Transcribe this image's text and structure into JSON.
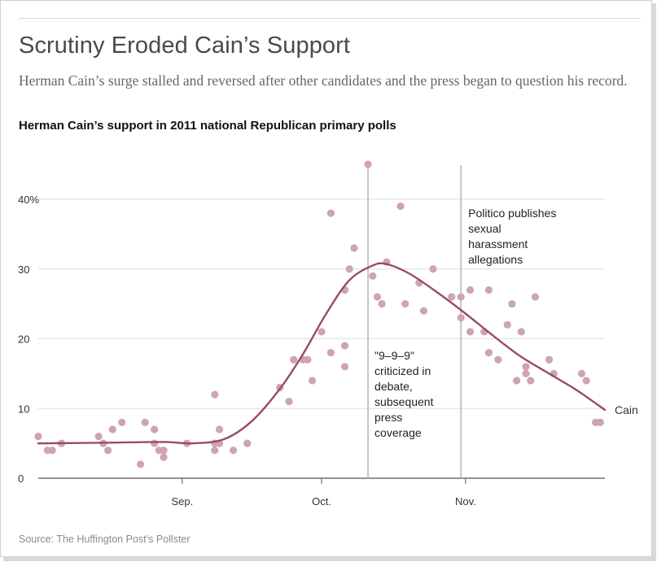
{
  "header": {
    "title": "Scrutiny Eroded Cain’s Support",
    "subtitle": "Herman Cain’s surge stalled and reversed after other candidates and the press began to question his record.",
    "chart_label": "Herman Cain’s support in 2011 national Republican primary polls"
  },
  "footer": {
    "source": "Source: The Huffington Post’s Pollster"
  },
  "colors": {
    "dot": "#cfa3b3",
    "line": "#9b4a66",
    "grid": "#dddddd",
    "event_line": "#b5b5b5",
    "text": "#333333"
  },
  "chart_data": {
    "type": "scatter",
    "title": "Herman Cain’s support in 2011 national Republican primary polls",
    "xlabel": "",
    "ylabel": "",
    "xlim_days_from_aug1": [
      0,
      122
    ],
    "ylim": [
      0,
      45
    ],
    "y_ticks": [
      {
        "value": 0,
        "label": "0"
      },
      {
        "value": 10,
        "label": "10"
      },
      {
        "value": 20,
        "label": "20"
      },
      {
        "value": 30,
        "label": "30"
      },
      {
        "value": 40,
        "label": "40%"
      }
    ],
    "x_ticks": [
      {
        "day": 31,
        "label": "Sep."
      },
      {
        "day": 61,
        "label": "Oct."
      },
      {
        "day": 92,
        "label": "Nov."
      }
    ],
    "grid": true,
    "points_day_value": [
      [
        0,
        6
      ],
      [
        2,
        4
      ],
      [
        3,
        4
      ],
      [
        5,
        5
      ],
      [
        13,
        6
      ],
      [
        14,
        5
      ],
      [
        15,
        4
      ],
      [
        16,
        7
      ],
      [
        18,
        8
      ],
      [
        22,
        2
      ],
      [
        23,
        8
      ],
      [
        25,
        7
      ],
      [
        25,
        5
      ],
      [
        26,
        4
      ],
      [
        27,
        4
      ],
      [
        27,
        3
      ],
      [
        32,
        5
      ],
      [
        38,
        12
      ],
      [
        38,
        5
      ],
      [
        38,
        4
      ],
      [
        39,
        7
      ],
      [
        39,
        5
      ],
      [
        42,
        4
      ],
      [
        45,
        5
      ],
      [
        52,
        13
      ],
      [
        54,
        11
      ],
      [
        55,
        17
      ],
      [
        57,
        17
      ],
      [
        58,
        17
      ],
      [
        59,
        14
      ],
      [
        61,
        21
      ],
      [
        63,
        38
      ],
      [
        63,
        18
      ],
      [
        66,
        27
      ],
      [
        66,
        19
      ],
      [
        66,
        16
      ],
      [
        67,
        30
      ],
      [
        68,
        33
      ],
      [
        71,
        45
      ],
      [
        72,
        29
      ],
      [
        73,
        26
      ],
      [
        74,
        25
      ],
      [
        75,
        31
      ],
      [
        78,
        39
      ],
      [
        79,
        25
      ],
      [
        82,
        28
      ],
      [
        83,
        24
      ],
      [
        85,
        30
      ],
      [
        89,
        26
      ],
      [
        91,
        26
      ],
      [
        91,
        23
      ],
      [
        93,
        27
      ],
      [
        93,
        21
      ],
      [
        96,
        21
      ],
      [
        97,
        27
      ],
      [
        97,
        18
      ],
      [
        99,
        17
      ],
      [
        101,
        22
      ],
      [
        102,
        25
      ],
      [
        103,
        14
      ],
      [
        104,
        21
      ],
      [
        105,
        16
      ],
      [
        105,
        15
      ],
      [
        106,
        14
      ],
      [
        107,
        26
      ],
      [
        110,
        17
      ],
      [
        111,
        15
      ],
      [
        117,
        15
      ],
      [
        118,
        14
      ],
      [
        120,
        8
      ],
      [
        121,
        8
      ]
    ],
    "series": [
      {
        "name": "Cain",
        "type": "line",
        "x_day": [
          0,
          15,
          27,
          33,
          40,
          46,
          52,
          57,
          62,
          67,
          72,
          75,
          80,
          86,
          92,
          98,
          104,
          110,
          116,
          122
        ],
        "values": [
          5,
          5.1,
          5.2,
          5.0,
          5.6,
          8.2,
          12.8,
          17.8,
          23.6,
          28.4,
          30.5,
          30.7,
          29.3,
          26.6,
          23.6,
          20.4,
          17.4,
          15.0,
          12.6,
          9.8
        ]
      }
    ],
    "series_label": "Cain",
    "annotations": [
      {
        "day": 71,
        "text_lines": [
          "\"9–9–9\"",
          "criticized in",
          "debate,",
          "subsequent",
          "press",
          "coverage"
        ]
      },
      {
        "day": 91,
        "text_lines": [
          "Politico publishes",
          "sexual",
          "harassment",
          "allegations"
        ]
      }
    ]
  }
}
